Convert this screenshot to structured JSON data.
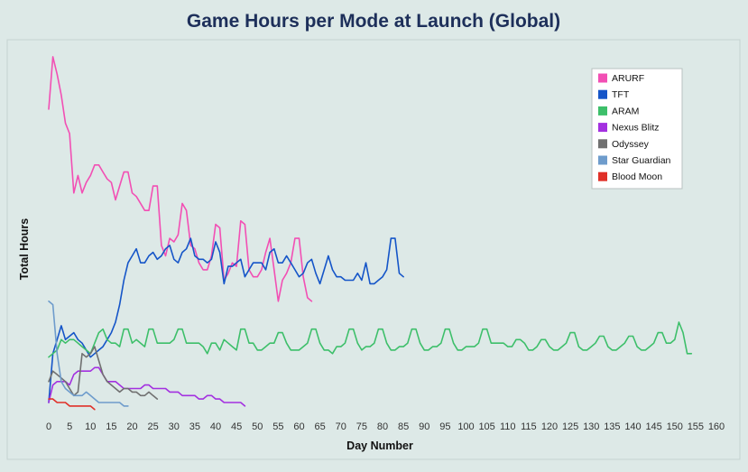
{
  "chart_data": {
    "type": "line",
    "title": "Game Hours per Mode at Launch (Global)",
    "xlabel": "Day Number",
    "ylabel": "Total Hours",
    "xlim": [
      -1,
      161
    ],
    "ylim": [
      0,
      100
    ],
    "x_ticks": [
      0,
      5,
      10,
      15,
      20,
      25,
      30,
      35,
      40,
      45,
      50,
      55,
      60,
      65,
      70,
      75,
      80,
      85,
      90,
      95,
      100,
      105,
      110,
      115,
      120,
      125,
      130,
      135,
      140,
      145,
      150,
      155,
      160
    ],
    "y_tick_labels_shown": false,
    "grid": false,
    "legend_position": "top-right",
    "series": [
      {
        "name": "ARURF",
        "color": "#f24fb4",
        "x": [
          0,
          1,
          2,
          3,
          4,
          5,
          6,
          7,
          8,
          9,
          10,
          11,
          12,
          13,
          14,
          15,
          16,
          17,
          18,
          19,
          20,
          21,
          22,
          23,
          24,
          25,
          26,
          27,
          28,
          29,
          30,
          31,
          32,
          33,
          34,
          35,
          36,
          37,
          38,
          39,
          40,
          41,
          42,
          43,
          44,
          45,
          46,
          47,
          48,
          49,
          50,
          51,
          52,
          53,
          54,
          55,
          56,
          57,
          58,
          59,
          60,
          61,
          62,
          63
        ],
        "y": [
          84,
          99,
          94,
          88,
          80,
          77,
          60,
          65,
          60,
          63,
          65,
          68,
          68,
          66,
          64,
          63,
          58,
          62,
          66,
          66,
          60,
          59,
          57,
          55,
          55,
          62,
          62,
          45,
          42,
          47,
          46,
          48,
          57,
          55,
          45,
          44,
          40,
          38,
          38,
          42,
          51,
          50,
          35,
          37,
          40,
          39,
          52,
          51,
          38,
          36,
          36,
          38,
          43,
          47,
          38,
          29,
          35,
          37,
          40,
          47,
          47,
          36,
          30,
          29
        ]
      },
      {
        "name": "TFT",
        "color": "#1555c8",
        "x": [
          0,
          1,
          2,
          3,
          4,
          5,
          6,
          7,
          8,
          9,
          10,
          11,
          12,
          13,
          14,
          15,
          16,
          17,
          18,
          19,
          20,
          21,
          22,
          23,
          24,
          25,
          26,
          27,
          28,
          29,
          30,
          31,
          32,
          33,
          34,
          35,
          36,
          37,
          38,
          39,
          40,
          41,
          42,
          43,
          44,
          45,
          46,
          47,
          48,
          49,
          50,
          51,
          52,
          53,
          54,
          55,
          56,
          57,
          58,
          59,
          60,
          61,
          62,
          63,
          64,
          65,
          66,
          67,
          68,
          69,
          70,
          71,
          72,
          73,
          74,
          75,
          76,
          77,
          78,
          79,
          80,
          81,
          82,
          83,
          84,
          85
        ],
        "y": [
          0,
          14,
          18,
          22,
          18,
          19,
          20,
          18,
          17,
          15,
          13,
          14,
          15,
          16,
          18,
          20,
          23,
          28,
          35,
          40,
          42,
          44,
          40,
          40,
          42,
          43,
          41,
          42,
          44,
          45,
          41,
          40,
          43,
          44,
          47,
          42,
          41,
          41,
          40,
          41,
          46,
          43,
          34,
          39,
          39,
          40,
          41,
          36,
          38,
          40,
          40,
          40,
          38,
          43,
          44,
          40,
          40,
          42,
          40,
          38,
          36,
          37,
          40,
          41,
          37,
          34,
          38,
          42,
          38,
          36,
          36,
          35,
          35,
          35,
          37,
          35,
          40,
          34,
          34,
          35,
          36,
          38,
          47,
          47,
          37,
          36
        ]
      },
      {
        "name": "ARAM",
        "color": "#3dbf6a",
        "x": [
          0,
          1,
          2,
          3,
          4,
          5,
          6,
          7,
          8,
          9,
          10,
          11,
          12,
          13,
          14,
          15,
          16,
          17,
          18,
          19,
          20,
          21,
          22,
          23,
          24,
          25,
          26,
          27,
          28,
          29,
          30,
          31,
          32,
          33,
          34,
          35,
          36,
          37,
          38,
          39,
          40,
          41,
          42,
          43,
          44,
          45,
          46,
          47,
          48,
          49,
          50,
          51,
          52,
          53,
          54,
          55,
          56,
          57,
          58,
          59,
          60,
          61,
          62,
          63,
          64,
          65,
          66,
          67,
          68,
          69,
          70,
          71,
          72,
          73,
          74,
          75,
          76,
          77,
          78,
          79,
          80,
          81,
          82,
          83,
          84,
          85,
          86,
          87,
          88,
          89,
          90,
          91,
          92,
          93,
          94,
          95,
          96,
          97,
          98,
          99,
          100,
          101,
          102,
          103,
          104,
          105,
          106,
          107,
          108,
          109,
          110,
          111,
          112,
          113,
          114,
          115,
          116,
          117,
          118,
          119,
          120,
          121,
          122,
          123,
          124,
          125,
          126,
          127,
          128,
          129,
          130,
          131,
          132,
          133,
          134,
          135,
          136,
          137,
          138,
          139,
          140,
          141,
          142,
          143,
          144,
          145,
          146,
          147,
          148,
          149,
          150,
          151,
          152,
          153,
          154
        ],
        "y": [
          13,
          14,
          15,
          18,
          17,
          18,
          18,
          17,
          16,
          15,
          14,
          17,
          20,
          21,
          18,
          17,
          17,
          16,
          21,
          21,
          17,
          18,
          17,
          16,
          21,
          21,
          17,
          17,
          17,
          17,
          18,
          21,
          21,
          17,
          17,
          17,
          17,
          16,
          14,
          17,
          17,
          15,
          18,
          17,
          16,
          15,
          21,
          21,
          17,
          17,
          15,
          15,
          16,
          17,
          17,
          20,
          20,
          17,
          15,
          15,
          15,
          16,
          17,
          21,
          21,
          17,
          15,
          15,
          14,
          16,
          16,
          17,
          21,
          21,
          17,
          15,
          16,
          16,
          17,
          21,
          21,
          17,
          15,
          15,
          16,
          16,
          17,
          21,
          21,
          17,
          15,
          15,
          16,
          16,
          17,
          21,
          21,
          17,
          15,
          15,
          16,
          16,
          16,
          17,
          21,
          21,
          17,
          17,
          17,
          17,
          16,
          16,
          18,
          18,
          17,
          15,
          15,
          16,
          18,
          18,
          16,
          15,
          15,
          16,
          17,
          20,
          20,
          16,
          15,
          15,
          16,
          17,
          19,
          19,
          16,
          15,
          15,
          16,
          17,
          19,
          19,
          16,
          15,
          15,
          16,
          17,
          20,
          20,
          17,
          17,
          18,
          23,
          20,
          14,
          14
        ]
      },
      {
        "name": "Nexus Blitz",
        "color": "#a330e0",
        "x": [
          0,
          1,
          2,
          3,
          4,
          5,
          6,
          7,
          8,
          9,
          10,
          11,
          12,
          13,
          14,
          15,
          16,
          17,
          18,
          19,
          20,
          21,
          22,
          23,
          24,
          25,
          26,
          27,
          28,
          29,
          30,
          31,
          32,
          33,
          34,
          35,
          36,
          37,
          38,
          39,
          40,
          41,
          42,
          43,
          44,
          45,
          46,
          47
        ],
        "y": [
          0,
          5,
          6,
          6,
          6,
          5,
          8,
          9,
          9,
          9,
          9,
          10,
          10,
          8,
          6,
          6,
          6,
          5,
          4,
          4,
          4,
          4,
          4,
          5,
          5,
          4,
          4,
          4,
          4,
          3,
          3,
          3,
          2,
          2,
          2,
          2,
          1,
          1,
          2,
          2,
          1,
          1,
          0,
          0,
          0,
          0,
          0,
          -1
        ]
      },
      {
        "name": "Odyssey",
        "color": "#707070",
        "x": [
          0,
          1,
          2,
          3,
          4,
          5,
          6,
          7,
          8,
          9,
          10,
          11,
          12,
          13,
          14,
          15,
          16,
          17,
          18,
          19,
          20,
          21,
          22,
          23,
          24,
          25,
          26
        ],
        "y": [
          6,
          9,
          8,
          7,
          6,
          4,
          2,
          3,
          14,
          13,
          14,
          16,
          12,
          8,
          6,
          5,
          4,
          3,
          4,
          4,
          3,
          3,
          2,
          2,
          3,
          2,
          1
        ]
      },
      {
        "name": "Star Guardian",
        "color": "#6e9ccc",
        "x": [
          0,
          1,
          2,
          3,
          4,
          5,
          6,
          7,
          8,
          9,
          10,
          11,
          12,
          13,
          14,
          15,
          16,
          17,
          18,
          19
        ],
        "y": [
          29,
          28,
          14,
          6,
          4,
          3,
          2,
          2,
          2,
          3,
          2,
          1,
          0,
          0,
          0,
          0,
          0,
          0,
          -1,
          -1
        ]
      },
      {
        "name": "Blood Moon",
        "color": "#e03028",
        "x": [
          0,
          1,
          2,
          3,
          4,
          5,
          6,
          7,
          8,
          9,
          10,
          11
        ],
        "y": [
          1,
          1,
          0,
          0,
          0,
          -1,
          -1,
          -1,
          -1,
          -1,
          -1,
          -2
        ]
      }
    ]
  }
}
